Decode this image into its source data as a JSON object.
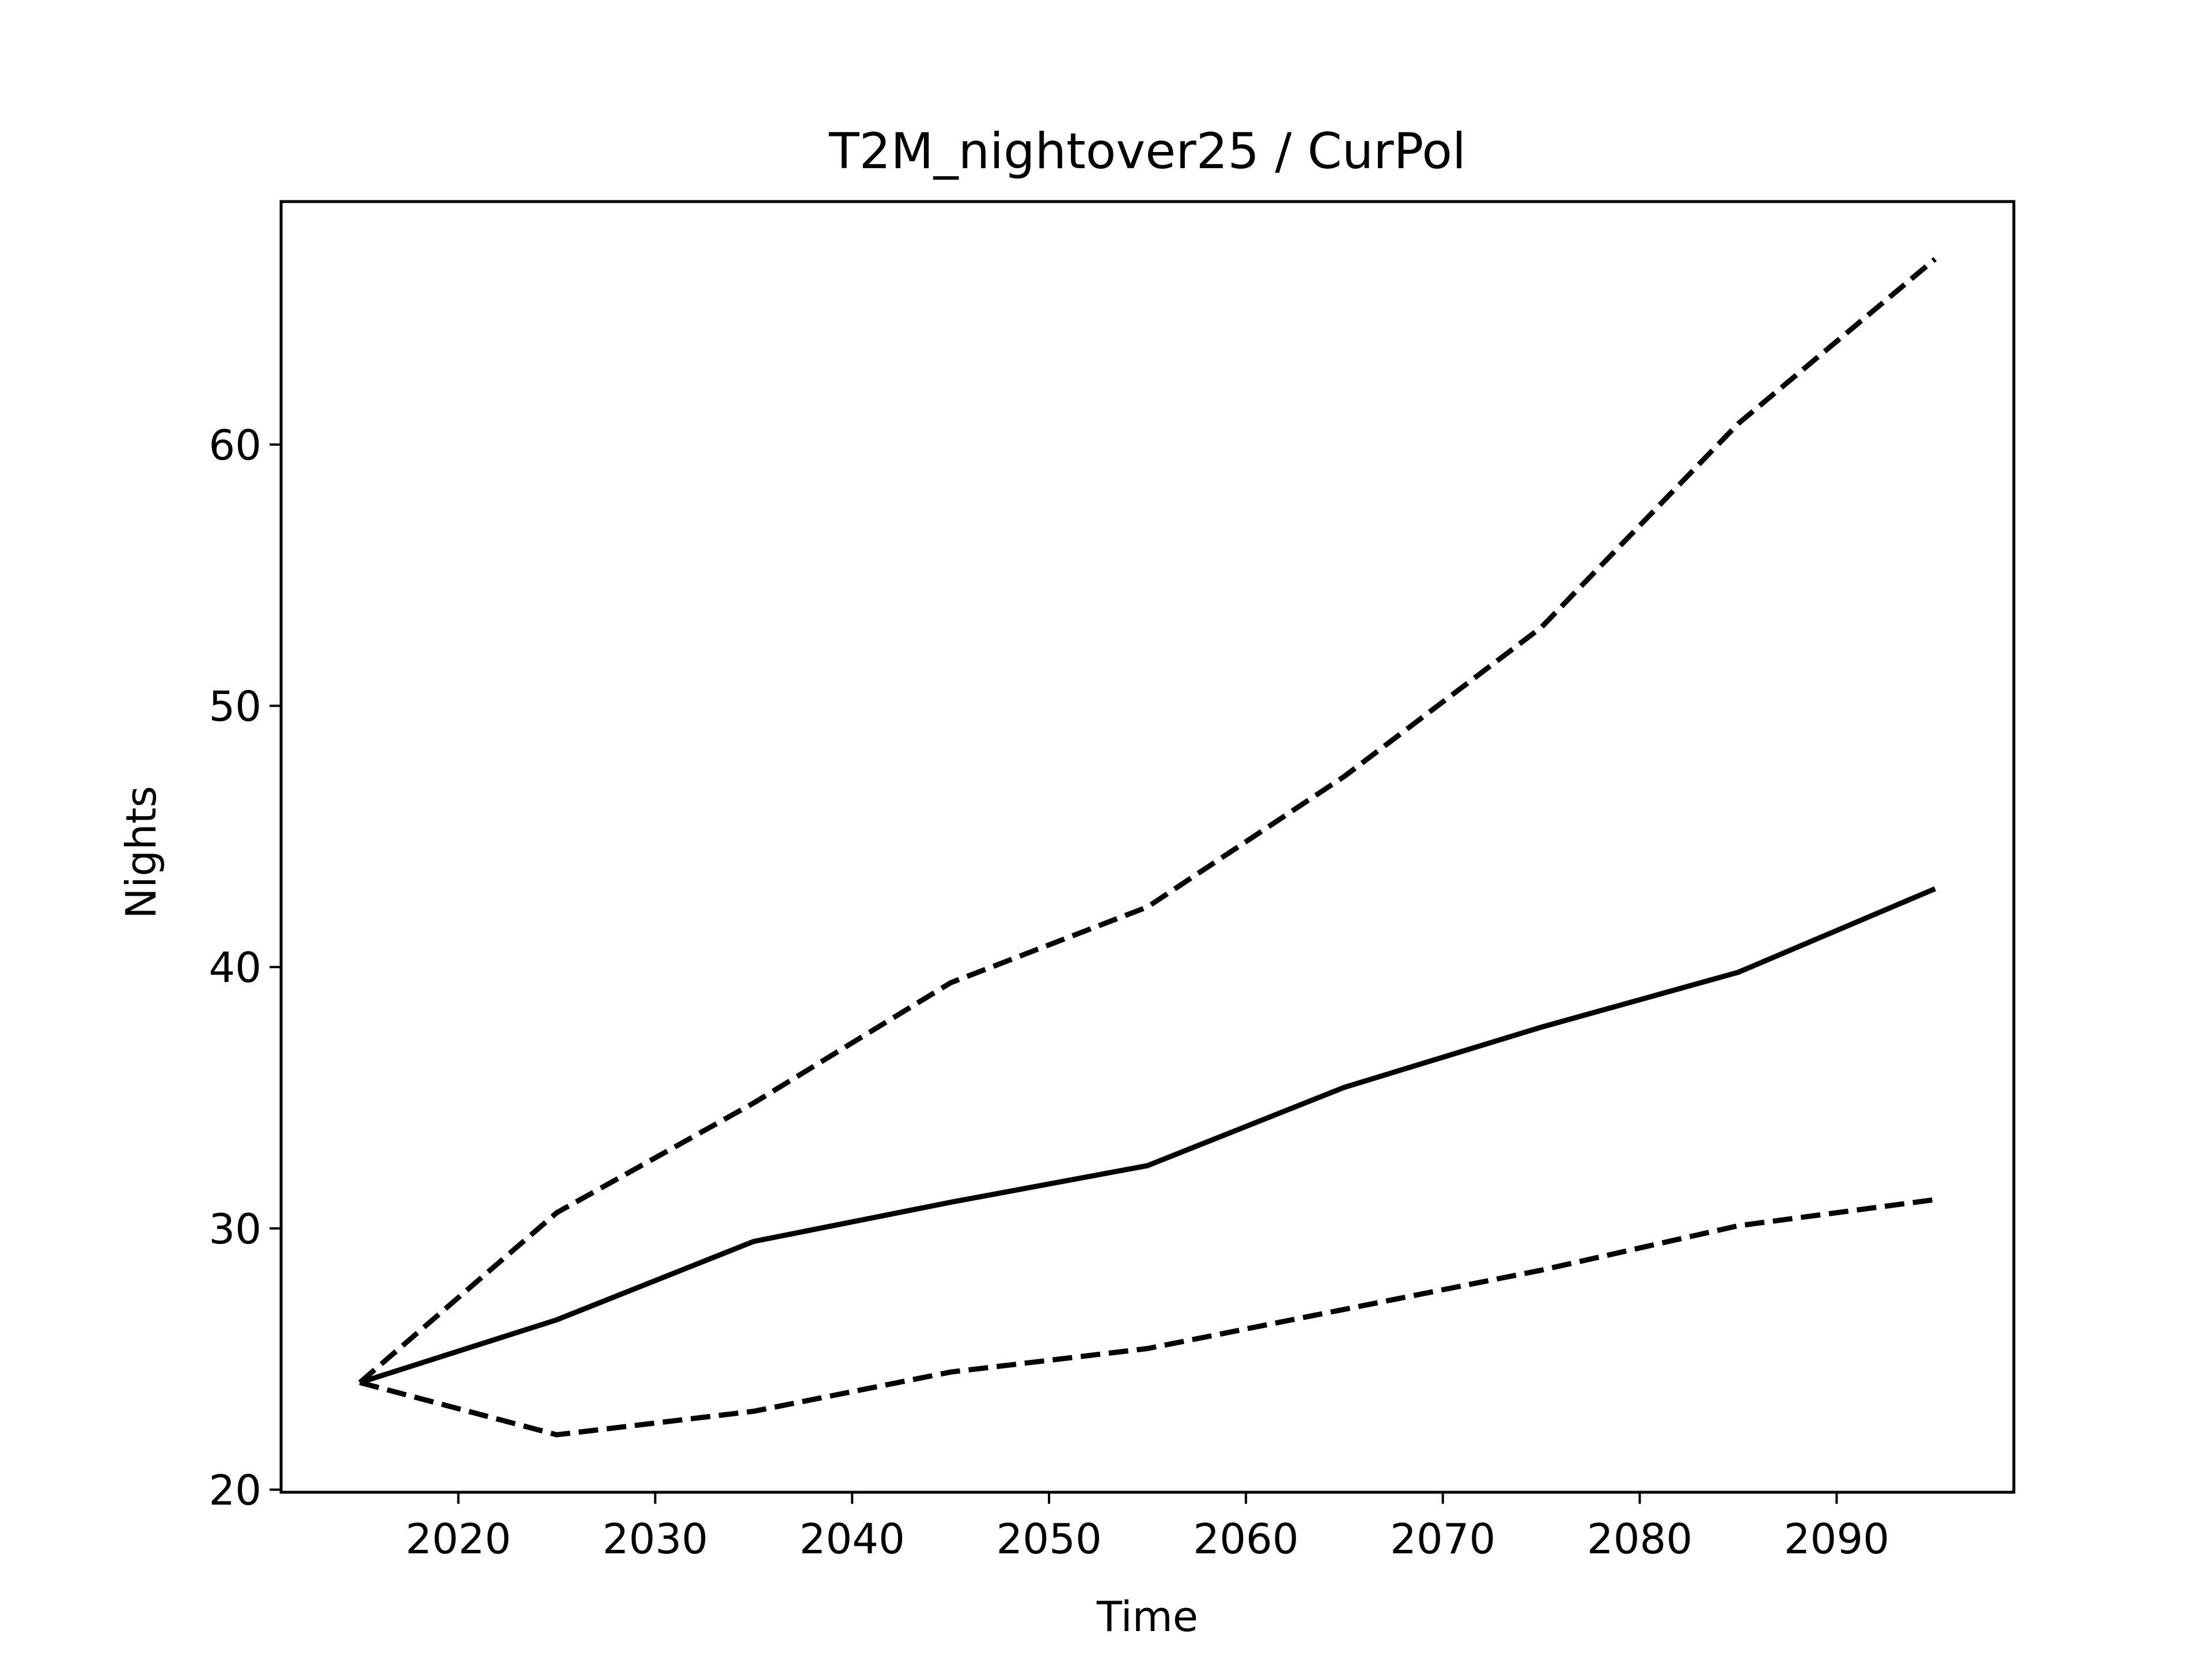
{
  "chart_data": {
    "type": "line",
    "title": "T2M_nightover25 / CurPol",
    "xlabel": "Time",
    "ylabel": "Nights",
    "xlim": [
      2011,
      2099
    ],
    "ylim": [
      19.9,
      69.3
    ],
    "xticks": [
      2020,
      2030,
      2040,
      2050,
      2060,
      2070,
      2080,
      2090
    ],
    "yticks": [
      20,
      30,
      40,
      50,
      60
    ],
    "grid": false,
    "legend": "none",
    "x": [
      2015,
      2025,
      2035,
      2045,
      2055,
      2065,
      2075,
      2085,
      2095
    ],
    "series": [
      {
        "style": "dashed",
        "color": "#000000",
        "values": [
          24.1,
          30.6,
          34.8,
          39.4,
          42.3,
          47.3,
          53.0,
          60.8,
          67.1
        ]
      },
      {
        "style": "solid",
        "color": "#000000",
        "values": [
          24.1,
          26.5,
          29.5,
          31.0,
          32.4,
          35.4,
          37.7,
          39.8,
          43.0
        ]
      },
      {
        "style": "dashed",
        "color": "#000000",
        "values": [
          24.1,
          22.1,
          23.0,
          24.5,
          25.4,
          26.9,
          28.4,
          30.1,
          31.1
        ]
      }
    ]
  }
}
